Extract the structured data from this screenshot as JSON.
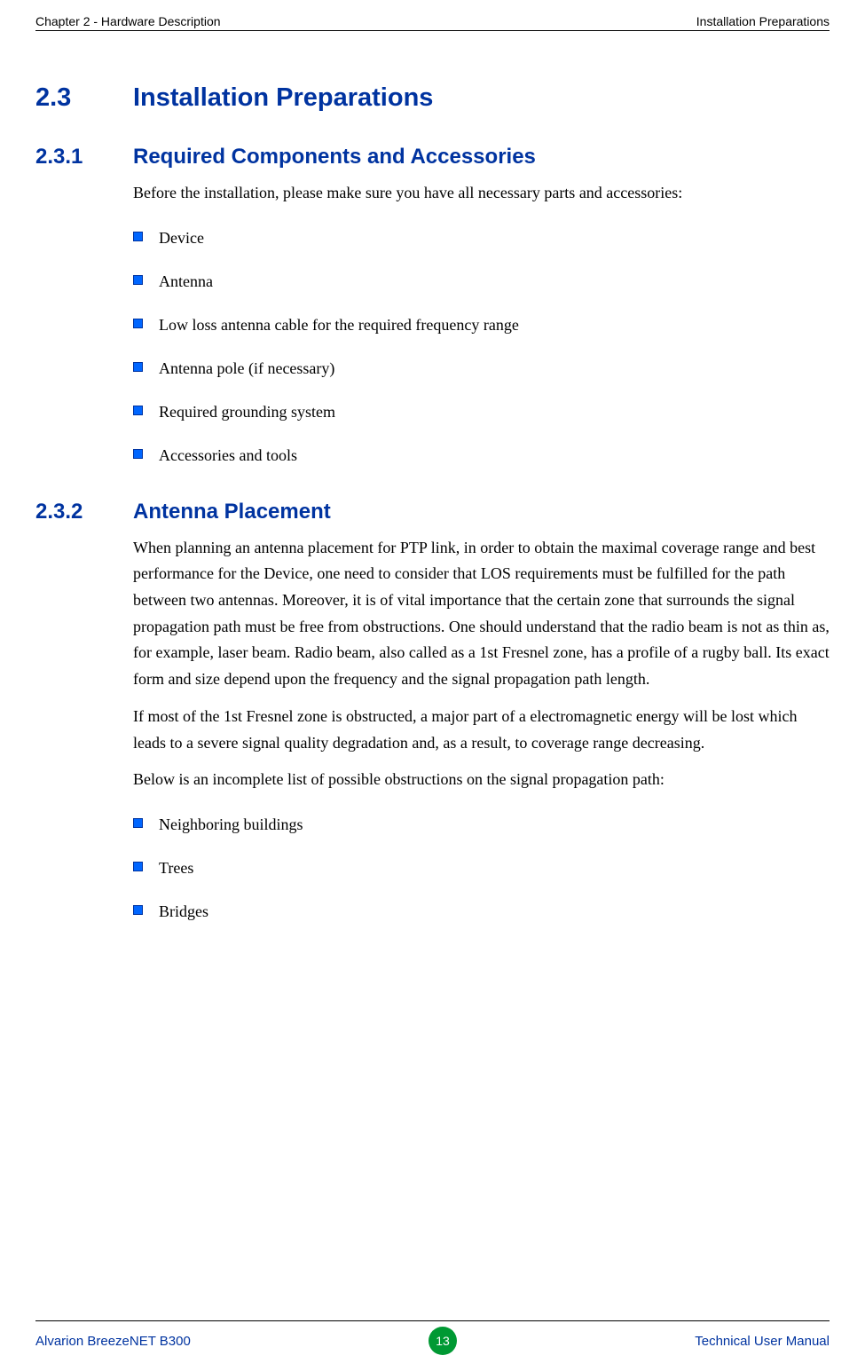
{
  "header": {
    "left": "Chapter 2 - Hardware Description",
    "right": "Installation Preparations"
  },
  "section": {
    "number": "2.3",
    "title": "Installation Preparations"
  },
  "sub1": {
    "number": "2.3.1",
    "title": "Required Components and Accessories",
    "intro": "Before the installation, please make sure you have all necessary parts and accessories:",
    "items": [
      "Device",
      "Antenna",
      "Low loss antenna cable for the required frequency range",
      "Antenna pole (if necessary)",
      "Required grounding system",
      "Accessories and tools"
    ]
  },
  "sub2": {
    "number": "2.3.2",
    "title": "Antenna Placement",
    "para1": "When planning an antenna placement for PTP link, in order to obtain the maximal coverage range and best performance for the Device, one need to consider that LOS requirements must be fulfilled for the path between two antennas. Moreover, it is of vital importance that the certain zone that surrounds the signal propagation path must be free from obstructions. One should understand that the radio beam is not as thin as, for example, laser beam. Radio beam, also called as a 1st Fresnel zone, has a profile of a rugby ball. Its exact form and size depend upon the frequency and the signal propagation path length.",
    "para2": "If most of the 1st Fresnel zone is obstructed, a major part of a electromagnetic energy will be lost which leads to a severe signal quality degradation and, as a result, to coverage range decreasing.",
    "para3": "Below is an incomplete list of possible obstructions on the signal propagation path:",
    "items": [
      "Neighboring buildings",
      "Trees",
      "Bridges"
    ]
  },
  "footer": {
    "left": "Alvarion BreezeNET B300",
    "page": "13",
    "right": "Technical User Manual"
  },
  "colors": {
    "heading": "#0033a0",
    "bullet_fill": "#0066ff",
    "page_circle": "#009933",
    "text": "#000000"
  }
}
